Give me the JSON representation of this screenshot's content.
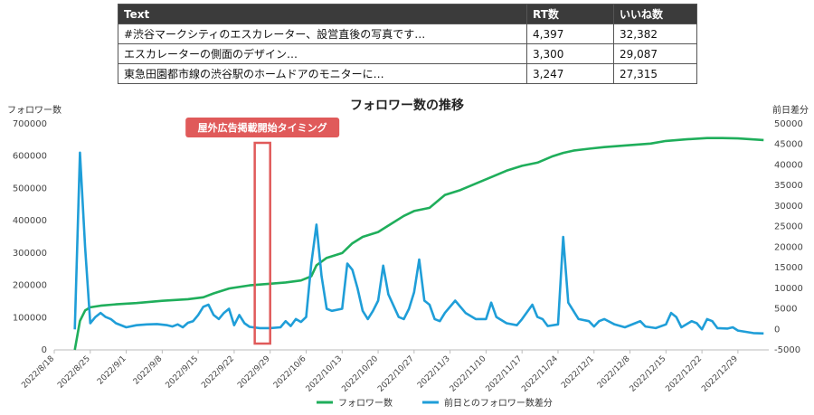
{
  "table": {
    "headers": [
      "Text",
      "RT数",
      "いいね数"
    ],
    "rows": [
      [
        "#渋谷マークシティのエスカレーター、設営直後の写真です…",
        "4,397",
        "32,382"
      ],
      [
        "エスカレーターの側面のデザイン…",
        "3,300",
        "29,087"
      ],
      [
        "東急田園都市線の渋谷駅のホームドアのモニターに…",
        "3,247",
        "27,315"
      ]
    ]
  },
  "chart_data": {
    "type": "line",
    "title": "フォロワー数の推移",
    "ylabel": "フォロワー数",
    "y2label": "前日差分",
    "ylim": [
      0,
      700000
    ],
    "y2lim": [
      -5000,
      50000
    ],
    "yticks": [
      "0",
      "100000",
      "200000",
      "300000",
      "400000",
      "500000",
      "600000",
      "700000"
    ],
    "y2ticks": [
      "-5000",
      "0",
      "5000",
      "10000",
      "15000",
      "20000",
      "25000",
      "30000",
      "35000",
      "40000",
      "45000",
      "50000"
    ],
    "xticks": [
      "2022/8/18",
      "2022/8/25",
      "2022/9/1",
      "2022/9/8",
      "2022/9/15",
      "2022/9/22",
      "2022/9/29",
      "2022/10/6",
      "2022/10/13",
      "2022/10/20",
      "2022/10/27",
      "2022/11/3",
      "2022/11/10",
      "2022/11/17",
      "2022/11/24",
      "2022/12/1",
      "2022/12/8",
      "2022/12/15",
      "2022/12/22",
      "2022/12/29"
    ],
    "x_start": "2022/8/18",
    "annotation": {
      "label": "屋外広告掲載開始タイミング",
      "from": "2022/9/26",
      "to": "2022/9/29",
      "color": "#e05a5a"
    },
    "legend": "bottom",
    "series": [
      {
        "name": "フォロワー数",
        "axis": "left",
        "color": "#1fae5b",
        "points": [
          [
            "2022/8/22",
            0
          ],
          [
            "2022/8/23",
            90000
          ],
          [
            "2022/8/24",
            122000
          ],
          [
            "2022/8/25",
            132000
          ],
          [
            "2022/8/27",
            137000
          ],
          [
            "2022/8/30",
            141000
          ],
          [
            "2022/9/3",
            145000
          ],
          [
            "2022/9/8",
            152000
          ],
          [
            "2022/9/13",
            157000
          ],
          [
            "2022/9/16",
            163000
          ],
          [
            "2022/9/18",
            175000
          ],
          [
            "2022/9/21",
            190000
          ],
          [
            "2022/9/25",
            200000
          ],
          [
            "2022/9/29",
            205000
          ],
          [
            "2022/10/2",
            209000
          ],
          [
            "2022/10/5",
            215000
          ],
          [
            "2022/10/7",
            228000
          ],
          [
            "2022/10/8",
            262000
          ],
          [
            "2022/10/10",
            285000
          ],
          [
            "2022/10/13",
            300000
          ],
          [
            "2022/10/15",
            330000
          ],
          [
            "2022/10/17",
            350000
          ],
          [
            "2022/10/20",
            365000
          ],
          [
            "2022/10/22",
            385000
          ],
          [
            "2022/10/25",
            415000
          ],
          [
            "2022/10/27",
            430000
          ],
          [
            "2022/10/30",
            440000
          ],
          [
            "2022/11/2",
            480000
          ],
          [
            "2022/11/5",
            495000
          ],
          [
            "2022/11/8",
            515000
          ],
          [
            "2022/11/11",
            535000
          ],
          [
            "2022/11/14",
            555000
          ],
          [
            "2022/11/17",
            570000
          ],
          [
            "2022/11/20",
            580000
          ],
          [
            "2022/11/23",
            600000
          ],
          [
            "2022/11/25",
            610000
          ],
          [
            "2022/11/27",
            617000
          ],
          [
            "2022/11/30",
            623000
          ],
          [
            "2022/12/3",
            628000
          ],
          [
            "2022/12/7",
            633000
          ],
          [
            "2022/12/12",
            639000
          ],
          [
            "2022/12/15",
            647000
          ],
          [
            "2022/12/19",
            652000
          ],
          [
            "2022/12/23",
            656000
          ],
          [
            "2022/12/26",
            656000
          ],
          [
            "2022/12/29",
            655000
          ],
          [
            "2023/1/3",
            650000
          ]
        ]
      },
      {
        "name": "前日とのフォロワー数差分",
        "axis": "right",
        "color": "#1f9ed8",
        "points": [
          [
            "2022/8/22",
            0
          ],
          [
            "2022/8/23",
            43000
          ],
          [
            "2022/8/24",
            20000
          ],
          [
            "2022/8/25",
            1500
          ],
          [
            "2022/8/26",
            3000
          ],
          [
            "2022/8/27",
            4000
          ],
          [
            "2022/8/28",
            3000
          ],
          [
            "2022/8/29",
            2500
          ],
          [
            "2022/8/30",
            1500
          ],
          [
            "2022/9/1",
            500
          ],
          [
            "2022/9/3",
            1000
          ],
          [
            "2022/9/5",
            1200
          ],
          [
            "2022/9/7",
            1300
          ],
          [
            "2022/9/9",
            1000
          ],
          [
            "2022/9/10",
            700
          ],
          [
            "2022/9/11",
            1200
          ],
          [
            "2022/9/12",
            500
          ],
          [
            "2022/9/13",
            1600
          ],
          [
            "2022/9/14",
            2000
          ],
          [
            "2022/9/15",
            3500
          ],
          [
            "2022/9/16",
            5500
          ],
          [
            "2022/9/17",
            6000
          ],
          [
            "2022/9/18",
            3500
          ],
          [
            "2022/9/19",
            2500
          ],
          [
            "2022/9/20",
            4000
          ],
          [
            "2022/9/21",
            5000
          ],
          [
            "2022/9/22",
            1000
          ],
          [
            "2022/9/23",
            3500
          ],
          [
            "2022/9/24",
            1500
          ],
          [
            "2022/9/25",
            600
          ],
          [
            "2022/9/27",
            300
          ],
          [
            "2022/9/29",
            300
          ],
          [
            "2022/10/1",
            500
          ],
          [
            "2022/10/2",
            2000
          ],
          [
            "2022/10/3",
            800
          ],
          [
            "2022/10/4",
            2500
          ],
          [
            "2022/10/5",
            1800
          ],
          [
            "2022/10/6",
            3000
          ],
          [
            "2022/10/7",
            16000
          ],
          [
            "2022/10/8",
            25500
          ],
          [
            "2022/10/9",
            13000
          ],
          [
            "2022/10/10",
            5000
          ],
          [
            "2022/10/11",
            4500
          ],
          [
            "2022/10/13",
            5000
          ],
          [
            "2022/10/14",
            16000
          ],
          [
            "2022/10/15",
            14500
          ],
          [
            "2022/10/16",
            10000
          ],
          [
            "2022/10/17",
            4500
          ],
          [
            "2022/10/18",
            2500
          ],
          [
            "2022/10/19",
            4500
          ],
          [
            "2022/10/20",
            7000
          ],
          [
            "2022/10/21",
            15500
          ],
          [
            "2022/10/22",
            8500
          ],
          [
            "2022/10/24",
            3000
          ],
          [
            "2022/10/25",
            2500
          ],
          [
            "2022/10/26",
            5000
          ],
          [
            "2022/10/27",
            9000
          ],
          [
            "2022/10/28",
            17000
          ],
          [
            "2022/10/29",
            7000
          ],
          [
            "2022/10/30",
            6000
          ],
          [
            "2022/10/31",
            2500
          ],
          [
            "2022/11/1",
            2000
          ],
          [
            "2022/11/2",
            4000
          ],
          [
            "2022/11/4",
            7000
          ],
          [
            "2022/11/6",
            4000
          ],
          [
            "2022/11/8",
            2500
          ],
          [
            "2022/11/10",
            2500
          ],
          [
            "2022/11/11",
            6500
          ],
          [
            "2022/11/12",
            3000
          ],
          [
            "2022/11/14",
            1500
          ],
          [
            "2022/11/16",
            1000
          ],
          [
            "2022/11/17",
            2500
          ],
          [
            "2022/11/19",
            6000
          ],
          [
            "2022/11/20",
            3000
          ],
          [
            "2022/11/21",
            2500
          ],
          [
            "2022/11/22",
            800
          ],
          [
            "2022/11/24",
            1200
          ],
          [
            "2022/11/25",
            22500
          ],
          [
            "2022/11/26",
            6500
          ],
          [
            "2022/11/28",
            2500
          ],
          [
            "2022/11/30",
            2000
          ],
          [
            "2022/12/1",
            700
          ],
          [
            "2022/12/2",
            2000
          ],
          [
            "2022/12/3",
            2500
          ],
          [
            "2022/12/5",
            1200
          ],
          [
            "2022/12/7",
            500
          ],
          [
            "2022/12/9",
            1500
          ],
          [
            "2022/12/10",
            2000
          ],
          [
            "2022/12/11",
            700
          ],
          [
            "2022/12/13",
            300
          ],
          [
            "2022/12/15",
            1200
          ],
          [
            "2022/12/16",
            4000
          ],
          [
            "2022/12/17",
            3000
          ],
          [
            "2022/12/18",
            500
          ],
          [
            "2022/12/20",
            2000
          ],
          [
            "2022/12/21",
            1500
          ],
          [
            "2022/12/22",
            0
          ],
          [
            "2022/12/23",
            2500
          ],
          [
            "2022/12/24",
            2000
          ],
          [
            "2022/12/25",
            300
          ],
          [
            "2022/12/27",
            200
          ],
          [
            "2022/12/28",
            500
          ],
          [
            "2022/12/29",
            -300
          ],
          [
            "2023/1/1",
            -900
          ],
          [
            "2023/1/3",
            -1000
          ]
        ]
      }
    ]
  }
}
